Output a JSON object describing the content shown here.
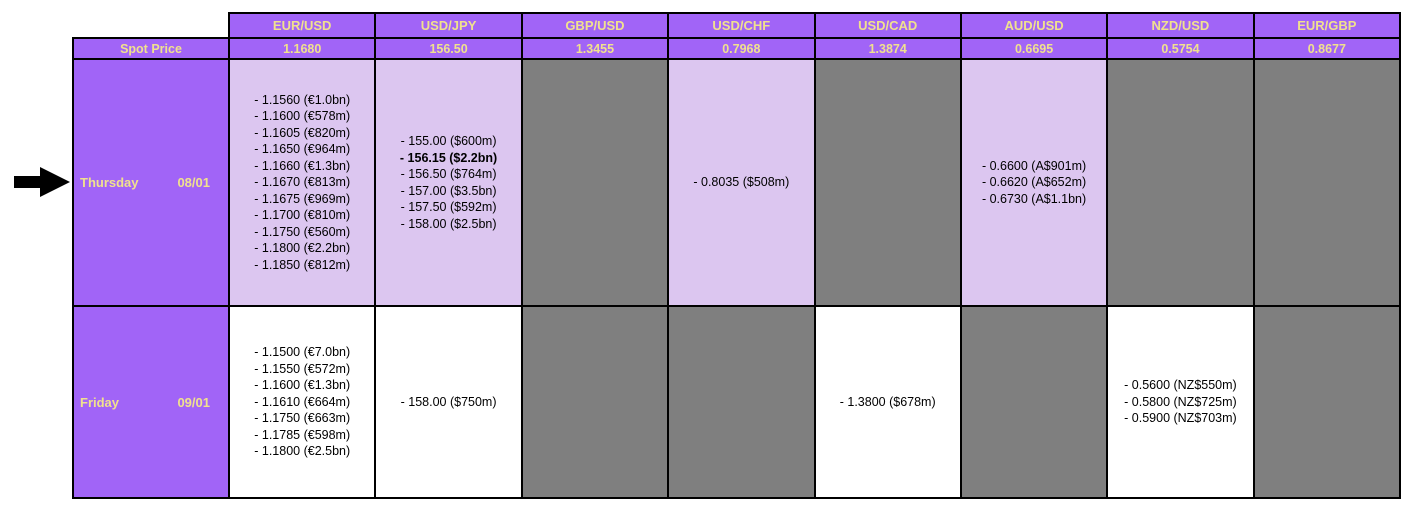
{
  "chart_data": {
    "type": "table",
    "pairs": [
      "EUR/USD",
      "USD/JPY",
      "GBP/USD",
      "USD/CHF",
      "USD/CAD",
      "AUD/USD",
      "NZD/USD",
      "EUR/GBP"
    ],
    "spot": {
      "label": "Spot Price",
      "values": [
        "1.1680",
        "156.50",
        "1.3455",
        "0.7968",
        "1.3874",
        "0.6695",
        "0.5754",
        "0.8677"
      ]
    },
    "days": [
      {
        "day": "Thursday",
        "date": "08/01",
        "arrow_marker": true,
        "cells": [
          {
            "bg": "lavender",
            "lines": [
              {
                "text": "- 1.1560 (€1.0bn)"
              },
              {
                "text": "- 1.1600 (€578m)"
              },
              {
                "text": "- 1.1605 (€820m)"
              },
              {
                "text": "- 1.1650 (€964m)"
              },
              {
                "text": "- 1.1660 (€1.3bn)"
              },
              {
                "text": "- 1.1670 (€813m)"
              },
              {
                "text": "- 1.1675 (€969m)"
              },
              {
                "text": "- 1.1700 (€810m)"
              },
              {
                "text": "- 1.1750 (€560m)"
              },
              {
                "text": "- 1.1800 (€2.2bn)"
              },
              {
                "text": "- 1.1850 (€812m)"
              }
            ]
          },
          {
            "bg": "lavender",
            "lines": [
              {
                "text": "- 155.00 ($600m)"
              },
              {
                "text": "- 156.15 ($2.2bn)",
                "bold": true
              },
              {
                "text": "- 156.50 ($764m)"
              },
              {
                "text": "- 157.00 ($3.5bn)"
              },
              {
                "text": "- 157.50 ($592m)"
              },
              {
                "text": "- 158.00 ($2.5bn)"
              }
            ]
          },
          {
            "bg": "gray",
            "lines": []
          },
          {
            "bg": "lavender",
            "lines": [
              {
                "text": "- 0.8035 ($508m)"
              }
            ]
          },
          {
            "bg": "gray",
            "lines": []
          },
          {
            "bg": "lavender",
            "lines": [
              {
                "text": "- 0.6600 (A$901m)"
              },
              {
                "text": "- 0.6620 (A$652m)"
              },
              {
                "text": "- 0.6730 (A$1.1bn)"
              }
            ]
          },
          {
            "bg": "gray",
            "lines": []
          },
          {
            "bg": "gray",
            "lines": []
          }
        ]
      },
      {
        "day": "Friday",
        "date": "09/01",
        "arrow_marker": false,
        "cells": [
          {
            "bg": "white",
            "lines": [
              {
                "text": "- 1.1500 (€7.0bn)"
              },
              {
                "text": "- 1.1550 (€572m)"
              },
              {
                "text": "- 1.1600 (€1.3bn)"
              },
              {
                "text": "- 1.1610 (€664m)"
              },
              {
                "text": "- 1.1750 (€663m)"
              },
              {
                "text": "- 1.1785 (€598m)"
              },
              {
                "text": "- 1.1800 (€2.5bn)"
              }
            ]
          },
          {
            "bg": "white",
            "lines": [
              {
                "text": "- 158.00 ($750m)"
              }
            ]
          },
          {
            "bg": "gray",
            "lines": []
          },
          {
            "bg": "gray",
            "lines": []
          },
          {
            "bg": "white",
            "lines": [
              {
                "text": "- 1.3800 ($678m)"
              }
            ]
          },
          {
            "bg": "gray",
            "lines": []
          },
          {
            "bg": "white",
            "lines": [
              {
                "text": "- 0.5600 (NZ$550m)"
              },
              {
                "text": "- 0.5800 (NZ$725m)"
              },
              {
                "text": "- 0.5900 (NZ$703m)"
              }
            ]
          },
          {
            "bg": "gray",
            "lines": []
          }
        ]
      }
    ]
  },
  "icons": {
    "arrow": "right-arrow-icon"
  },
  "colors": {
    "purple": "#A164F7",
    "lavender": "#DCC6F0",
    "gray": "#7F7F7F",
    "header_text": "#F0E18E",
    "border": "#000000"
  }
}
